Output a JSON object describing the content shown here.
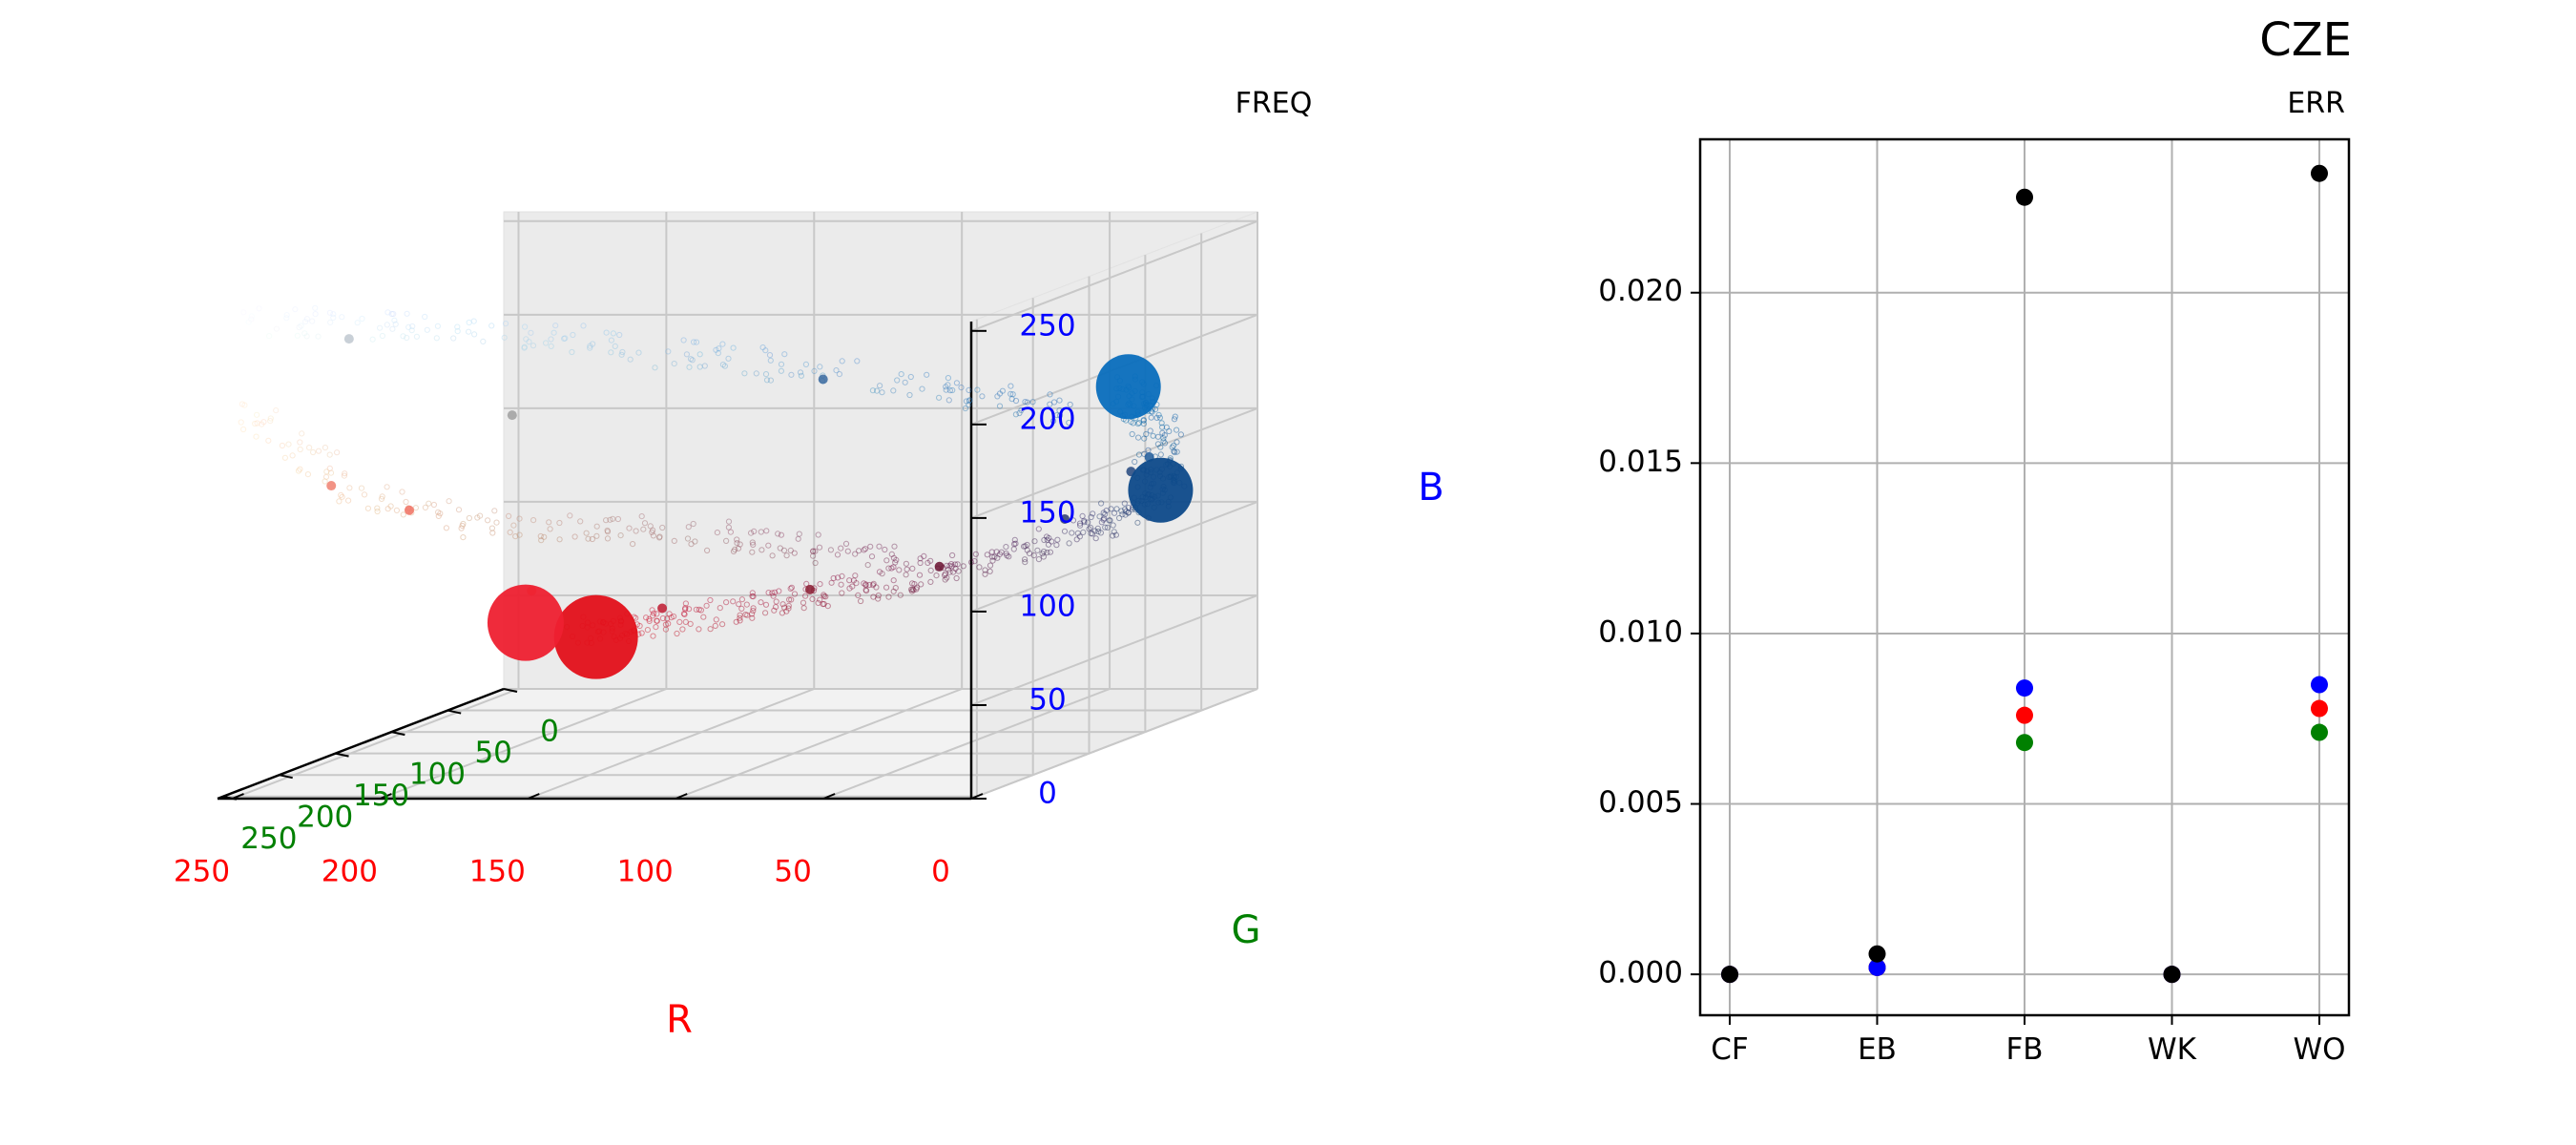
{
  "figure_title": "CZE",
  "chart_data": [
    {
      "type": "scatter",
      "projection": "3d",
      "title": "FREQ",
      "xlabel": "R",
      "ylabel": "G",
      "zlabel": "B",
      "xlim": [
        0,
        255
      ],
      "ylim": [
        0,
        255
      ],
      "zlim": [
        0,
        255
      ],
      "xticks": [
        "0",
        "50",
        "100",
        "150",
        "200",
        "250"
      ],
      "yticks": [
        "0",
        "50",
        "100",
        "150",
        "200",
        "250"
      ],
      "zticks": [
        "0",
        "50",
        "100",
        "150",
        "200",
        "250"
      ],
      "grid": true,
      "large_points": [
        {
          "r": 0,
          "g": 115,
          "b": 188,
          "size": 34,
          "color": "#0a6ebd"
        },
        {
          "r": 10,
          "g": 60,
          "b": 120,
          "size": 34,
          "color": "#0e4a8a"
        },
        {
          "r": 220,
          "g": 10,
          "b": 30,
          "size": 44,
          "color": "#e3101a"
        },
        {
          "r": 240,
          "g": 20,
          "b": 40,
          "size": 40,
          "color": "#ee2030"
        },
        {
          "r": 255,
          "g": 255,
          "b": 255,
          "size": 26,
          "color": "#ffffff"
        }
      ],
      "medium_points": [
        {
          "r": 10,
          "g": 70,
          "b": 140,
          "color": "#1e5a9a"
        },
        {
          "r": 20,
          "g": 60,
          "b": 130,
          "color": "#23477e"
        },
        {
          "r": 50,
          "g": 40,
          "b": 100,
          "color": "#2a3a70"
        },
        {
          "r": 100,
          "g": 20,
          "b": 70,
          "color": "#6a1030"
        },
        {
          "r": 140,
          "g": 30,
          "b": 60,
          "color": "#8a1a30"
        },
        {
          "r": 190,
          "g": 30,
          "b": 50,
          "color": "#c01a30"
        },
        {
          "r": 200,
          "g": 120,
          "b": 80,
          "color": "#f05a40"
        },
        {
          "r": 230,
          "g": 150,
          "b": 130,
          "color": "#f07060"
        },
        {
          "r": 245,
          "g": 180,
          "b": 150,
          "color": "#f08070"
        },
        {
          "r": 180,
          "g": 190,
          "b": 190,
          "color": "#a0a0a0"
        },
        {
          "r": 220,
          "g": 230,
          "b": 240,
          "color": "#c0c8d0"
        },
        {
          "r": 90,
          "g": 150,
          "b": 200,
          "color": "#3a6aa0"
        }
      ],
      "trend_paths": [
        {
          "color": "#2a4a8a",
          "points": [
            [
              0,
              115,
              188
            ],
            [
              0,
              90,
              160
            ],
            [
              10,
              60,
              120
            ],
            [
              40,
              40,
              95
            ],
            [
              90,
              20,
              70
            ],
            [
              140,
              15,
              55
            ],
            [
              190,
              10,
              40
            ],
            [
              225,
              12,
              32
            ]
          ]
        },
        {
          "color": "#5a7fb5",
          "points": [
            [
              20,
              100,
              170
            ],
            [
              60,
              130,
              190
            ],
            [
              110,
              170,
              215
            ],
            [
              160,
              205,
              235
            ],
            [
              210,
              230,
              248
            ],
            [
              255,
              255,
              255
            ]
          ]
        },
        {
          "color": "#a0203a",
          "points": [
            [
              100,
              20,
              70
            ],
            [
              130,
              60,
              90
            ],
            [
              160,
              110,
              110
            ],
            [
              200,
              150,
              120
            ],
            [
              235,
              190,
              150
            ],
            [
              255,
              230,
              200
            ]
          ]
        }
      ]
    },
    {
      "type": "scatter",
      "title": "ERR",
      "categories": [
        "CF",
        "EB",
        "FB",
        "WK",
        "WO"
      ],
      "ylim": [
        -0.0012,
        0.0245
      ],
      "yticks": [
        "0.000",
        "0.005",
        "0.010",
        "0.015",
        "0.020"
      ],
      "ytick_values": [
        0,
        0.005,
        0.01,
        0.015,
        0.02
      ],
      "grid": true,
      "series": [
        {
          "name": "G",
          "color": "#008000",
          "values": [
            0,
            0.0002,
            0.0068,
            0,
            0.0071
          ]
        },
        {
          "name": "R",
          "color": "#ff0000",
          "values": [
            0,
            0.0002,
            0.0076,
            0,
            0.0078
          ]
        },
        {
          "name": "B",
          "color": "#0000ff",
          "values": [
            0,
            0.0002,
            0.0084,
            0,
            0.0085
          ]
        },
        {
          "name": "total",
          "color": "#000000",
          "values": [
            0,
            0.0006,
            0.0228,
            0,
            0.0235
          ]
        }
      ]
    }
  ]
}
